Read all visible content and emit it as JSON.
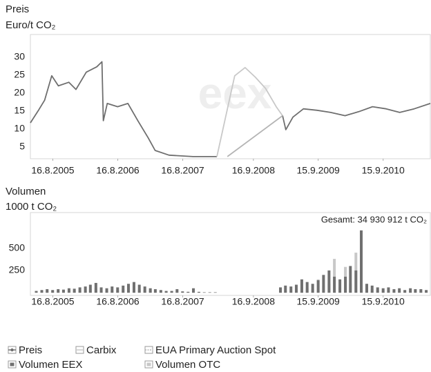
{
  "chart_data": [
    {
      "type": "line",
      "title": "Preis",
      "y_label": "Euro/t CO₂",
      "watermark": "eex",
      "xlim": [
        "2005-04-12",
        "2011-06-07"
      ],
      "xticks": [
        {
          "value": "2005-08-16",
          "label": "16.8.2005"
        },
        {
          "value": "2006-08-16",
          "label": "16.8.2006"
        },
        {
          "value": "2007-08-16",
          "label": "16.8.2007"
        },
        {
          "value": "2008-09-16",
          "label": "16.9.2008"
        },
        {
          "value": "2009-09-15",
          "label": "15.9.2009"
        },
        {
          "value": "2010-09-15",
          "label": "15.9.2010"
        }
      ],
      "ylim": [
        1.7,
        36.3
      ],
      "yticks": [
        5,
        10,
        15,
        20,
        25,
        30
      ],
      "grid": false,
      "series": [
        {
          "name": "Preis",
          "color": "#6e6e6e",
          "x": [
            "2005-04-12",
            "2005-05-25",
            "2005-07-01",
            "2005-08-10",
            "2005-09-16",
            "2005-11-14",
            "2005-12-24",
            "2006-02-20",
            "2006-04-20",
            "2006-05-19",
            "2006-05-27",
            "2006-06-18",
            "2006-08-15",
            "2006-10-12",
            "2006-12-07",
            "2007-02-03",
            "2007-03-14",
            "2007-05-31",
            "2007-10-13",
            "2008-02-24",
            "2008-06-01",
            "2009-02-27",
            "2009-03-17",
            "2009-04-26",
            "2009-06-24",
            "2009-09-09",
            "2009-11-24",
            "2010-02-13",
            "2010-05-01",
            "2010-07-17",
            "2010-10-02",
            "2010-12-17",
            "2011-03-08",
            "2011-06-07"
          ],
          "values": [
            11.7,
            15,
            18,
            24.8,
            22,
            23,
            21,
            25.8,
            27.3,
            28.7,
            12.3,
            17.1,
            16.2,
            17.1,
            12.3,
            7.5,
            4,
            2.7,
            2.3,
            2.3,
            null,
            13.7,
            9.8,
            13.3,
            15.6,
            15.2,
            14.6,
            13.7,
            14.8,
            16.2,
            15.6,
            14.6,
            15.6,
            17.1
          ]
        },
        {
          "name": "Carbix",
          "color": "#c8c8c8",
          "x": [
            "2008-02-24",
            "2008-06-03",
            "2008-07-31",
            "2008-09-27",
            "2008-11-23",
            "2009-01-22",
            "2009-02-27"
          ],
          "values": [
            2.3,
            24.8,
            27.1,
            24.4,
            21.3,
            16.2,
            13.7
          ]
        },
        {
          "name": "EUA Primary Auction Spot",
          "color": "#b4b4b4",
          "x": [
            "2008-04-23",
            "2009-02-27"
          ],
          "values": [
            2.3,
            13.7
          ]
        }
      ]
    },
    {
      "type": "bar",
      "title": "Volumen",
      "y_label": "1000 t CO₂",
      "annotation": "Gesamt: 34 930 912 t CO₂",
      "xlim": [
        "2005-04-12",
        "2011-06-07"
      ],
      "xticks": [
        {
          "value": "2005-08-16",
          "label": "16.8.2005"
        },
        {
          "value": "2006-08-16",
          "label": "16.8.2006"
        },
        {
          "value": "2007-08-16",
          "label": "16.8.2007"
        },
        {
          "value": "2008-09-16",
          "label": "16.9.2008"
        },
        {
          "value": "2009-09-15",
          "label": "15.9.2009"
        },
        {
          "value": "2010-09-15",
          "label": "15.9.2010"
        }
      ],
      "ylim": [
        -30,
        900
      ],
      "yticks": [
        250,
        500
      ],
      "grid": false,
      "x": [
        "2005-05-15",
        "2005-06-15",
        "2005-07-15",
        "2005-08-15",
        "2005-09-15",
        "2005-10-15",
        "2005-11-15",
        "2005-12-15",
        "2006-01-15",
        "2006-02-15",
        "2006-03-15",
        "2006-04-15",
        "2006-05-15",
        "2006-06-15",
        "2006-07-15",
        "2006-08-15",
        "2006-09-15",
        "2006-10-15",
        "2006-11-15",
        "2006-12-15",
        "2007-01-15",
        "2007-02-15",
        "2007-03-15",
        "2007-04-15",
        "2007-05-15",
        "2007-06-15",
        "2007-07-15",
        "2007-08-15",
        "2007-09-15",
        "2007-10-15",
        "2007-11-15",
        "2007-12-15",
        "2008-01-15",
        "2008-02-15",
        "2008-03-15",
        "2008-04-15",
        "2008-05-15",
        "2008-06-15",
        "2008-07-15",
        "2008-08-15",
        "2008-09-15",
        "2008-10-15",
        "2008-11-15",
        "2008-12-15",
        "2009-01-15",
        "2009-02-15",
        "2009-03-15",
        "2009-04-15",
        "2009-05-15",
        "2009-06-15",
        "2009-07-15",
        "2009-08-15",
        "2009-09-15",
        "2009-10-15",
        "2009-11-15",
        "2009-12-15",
        "2010-01-15",
        "2010-02-15",
        "2010-03-15",
        "2010-04-15",
        "2010-05-15",
        "2010-06-15",
        "2010-07-15",
        "2010-08-15",
        "2010-09-15",
        "2010-10-15",
        "2010-11-15",
        "2010-12-15",
        "2011-01-15",
        "2011-02-15",
        "2011-03-15",
        "2011-04-15",
        "2011-05-15"
      ],
      "series": [
        {
          "name": "Volumen OTC",
          "color": "#c8c8c8",
          "values": [
            10,
            15,
            20,
            20,
            20,
            20,
            25,
            25,
            30,
            30,
            40,
            50,
            30,
            30,
            30,
            30,
            40,
            50,
            60,
            40,
            30,
            30,
            20,
            20,
            15,
            15,
            20,
            10,
            10,
            20,
            5,
            5,
            5,
            5,
            null,
            null,
            null,
            null,
            null,
            null,
            null,
            null,
            null,
            null,
            null,
            20,
            30,
            30,
            40,
            60,
            50,
            40,
            150,
            80,
            100,
            380,
            60,
            290,
            100,
            450,
            80,
            60,
            40,
            30,
            30,
            30,
            20,
            20,
            20,
            20,
            20,
            20,
            20
          ]
        },
        {
          "name": "Volumen EEX",
          "color": "#707070",
          "values": [
            20,
            30,
            40,
            30,
            40,
            35,
            50,
            45,
            60,
            70,
            90,
            110,
            60,
            50,
            70,
            60,
            80,
            100,
            120,
            90,
            70,
            50,
            40,
            30,
            20,
            20,
            40,
            15,
            10,
            50,
            10,
            5,
            5,
            5,
            null,
            null,
            null,
            null,
            null,
            null,
            null,
            null,
            null,
            null,
            null,
            60,
            80,
            70,
            90,
            150,
            120,
            100,
            140,
            200,
            250,
            180,
            150,
            180,
            300,
            250,
            700,
            100,
            80,
            60,
            50,
            60,
            40,
            50,
            30,
            50,
            40,
            40,
            30
          ]
        }
      ]
    }
  ]
}
